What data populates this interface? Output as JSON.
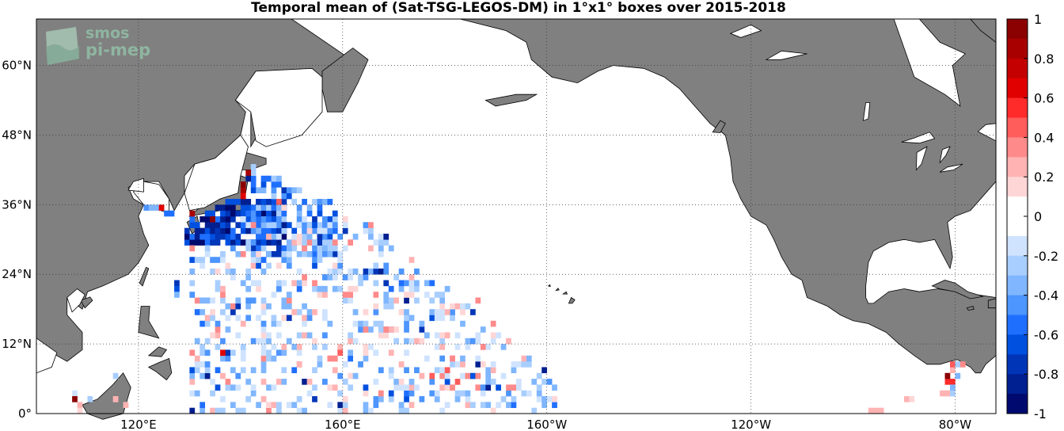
{
  "chart_data": {
    "type": "heatmap",
    "title": "Temporal mean of (Sat-TSG-LEGOS-DM) in 1°x1° boxes over 2015-2018",
    "x_ticks": [
      "120°E",
      "160°E",
      "160°W",
      "120°W",
      "80°W"
    ],
    "y_ticks": [
      "0°",
      "12°N",
      "24°N",
      "36°N",
      "48°N",
      "60°N"
    ],
    "colorbar": {
      "min": -1,
      "max": 1,
      "tick_labels": [
        "1",
        "0.8",
        "0.6",
        "0.4",
        "0.2",
        "0",
        "-0.2",
        "-0.4",
        "-0.6",
        "-0.8",
        "-1"
      ],
      "colors": [
        "#8b0000",
        "#a80000",
        "#c40000",
        "#e00000",
        "#ff2a2a",
        "#ff5c5c",
        "#ff8a8a",
        "#ffb3b3",
        "#ffd6d6",
        "#ffffff",
        "#ffffff",
        "#cfe3ff",
        "#a8ceff",
        "#7fb6ff",
        "#4d95ff",
        "#1f6fff",
        "#0050e0",
        "#0035b8",
        "#001f90",
        "#000a6e"
      ]
    },
    "grid": "dotted",
    "land_color": "#808080"
  },
  "logo": {
    "line1": "smos",
    "line2": "pi-mep"
  }
}
